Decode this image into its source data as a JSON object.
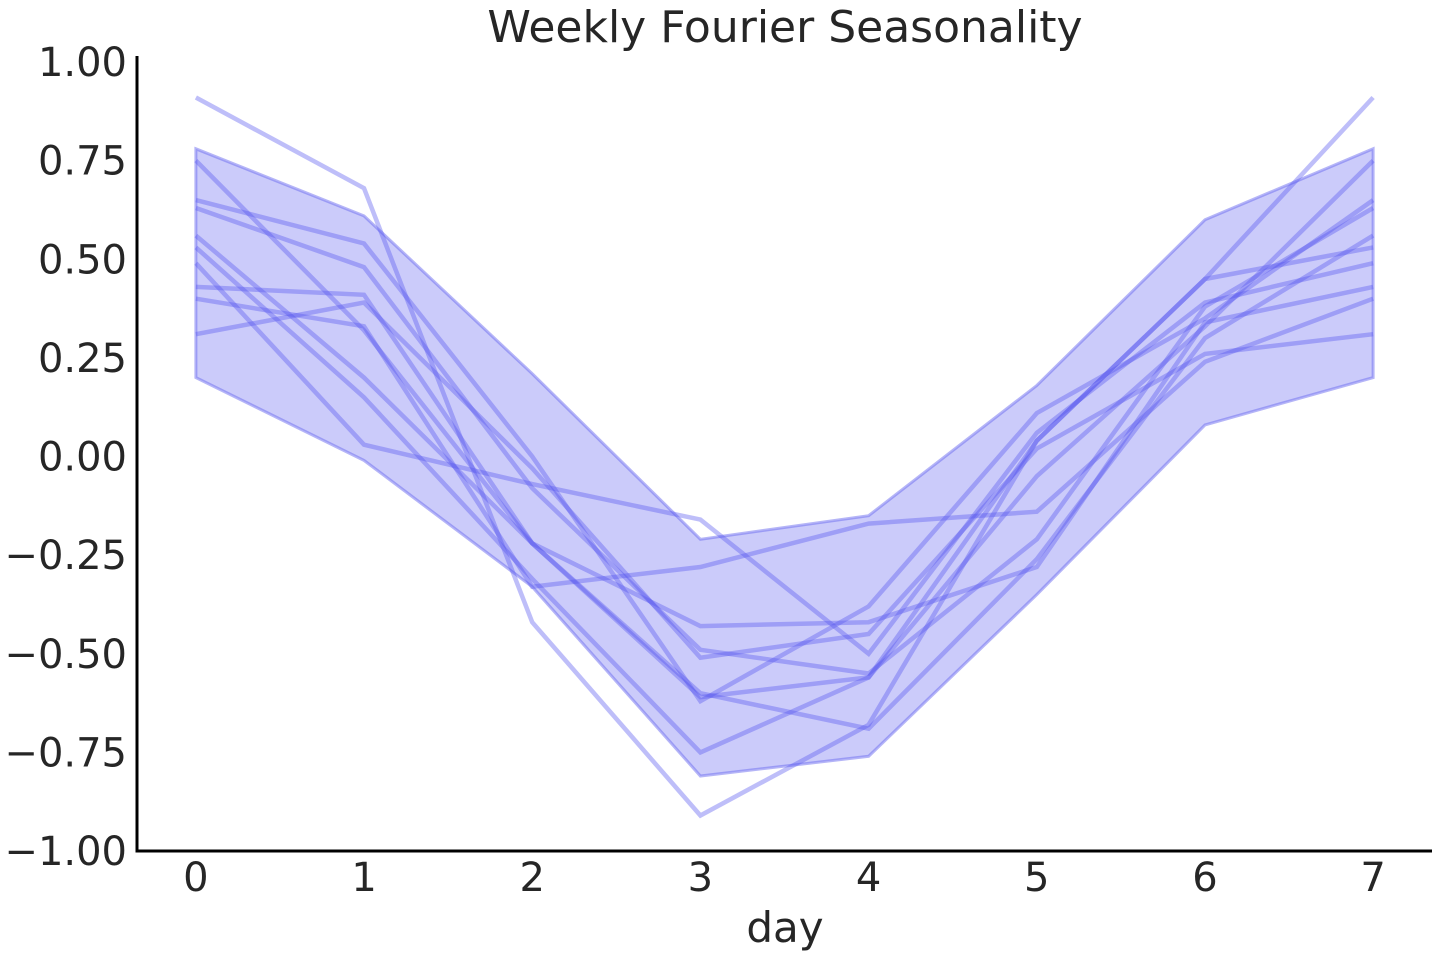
{
  "chart_data": {
    "type": "line",
    "title": "Weekly Fourier Seasonality",
    "xlabel": "day",
    "ylabel": "",
    "xlim": [
      -0.35,
      7.35
    ],
    "ylim": [
      -1.0,
      1.0
    ],
    "x": [
      0,
      1,
      2,
      3,
      4,
      5,
      6,
      7
    ],
    "x_ticks": [
      "0",
      "1",
      "2",
      "3",
      "4",
      "5",
      "6",
      "7"
    ],
    "y_ticks": [
      1.0,
      0.75,
      0.5,
      0.25,
      0.0,
      -0.25,
      -0.5,
      -0.75,
      -1.0
    ],
    "y_tick_labels": [
      "1.00",
      "0.75",
      "0.50",
      "0.25",
      "0.00",
      "−0.25",
      "−0.50",
      "−0.75",
      "−1.00"
    ],
    "band": {
      "upper": [
        0.78,
        0.61,
        0.21,
        -0.21,
        -0.15,
        0.18,
        0.6,
        0.78
      ],
      "lower": [
        0.2,
        -0.01,
        -0.33,
        -0.81,
        -0.76,
        -0.35,
        0.08,
        0.2
      ],
      "color": "#6b6bf0"
    },
    "series_color": "#5555ee",
    "series": [
      {
        "values": [
          0.91,
          0.68,
          -0.42,
          -0.91,
          -0.68,
          0.04,
          0.45,
          0.91
        ]
      },
      {
        "values": [
          0.75,
          0.32,
          -0.22,
          -0.61,
          -0.56,
          -0.05,
          0.33,
          0.75
        ]
      },
      {
        "values": [
          0.65,
          0.54,
          0.0,
          -0.62,
          -0.38,
          0.11,
          0.35,
          0.65
        ]
      },
      {
        "values": [
          0.63,
          0.48,
          -0.08,
          -0.49,
          -0.55,
          -0.21,
          0.38,
          0.63
        ]
      },
      {
        "values": [
          0.56,
          0.2,
          -0.22,
          -0.6,
          -0.69,
          -0.26,
          0.3,
          0.56
        ]
      },
      {
        "values": [
          0.53,
          0.15,
          -0.31,
          -0.75,
          -0.56,
          0.04,
          0.45,
          0.53
        ]
      },
      {
        "values": [
          0.49,
          0.03,
          -0.07,
          -0.16,
          -0.5,
          0.06,
          0.39,
          0.49
        ]
      },
      {
        "values": [
          0.43,
          0.41,
          -0.22,
          -0.43,
          -0.42,
          -0.28,
          0.34,
          0.43
        ]
      },
      {
        "values": [
          0.4,
          0.33,
          -0.33,
          -0.28,
          -0.17,
          -0.14,
          0.24,
          0.4
        ]
      },
      {
        "values": [
          0.31,
          0.39,
          -0.03,
          -0.51,
          -0.45,
          0.02,
          0.26,
          0.31
        ]
      }
    ],
    "grid": false,
    "legend": "none"
  }
}
